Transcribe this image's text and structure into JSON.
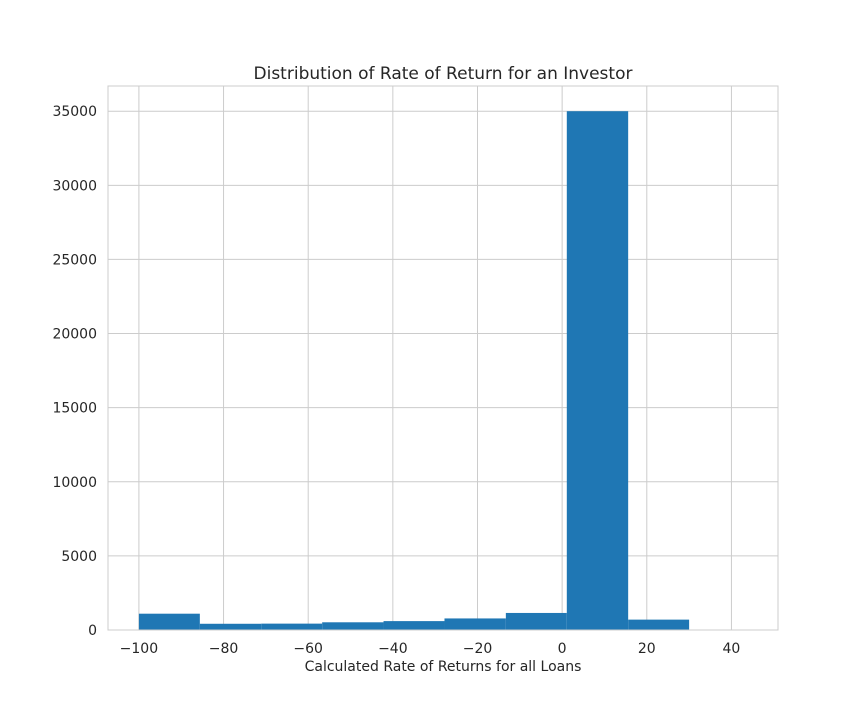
{
  "chart_data": {
    "type": "bar",
    "title": "Distribution of Rate of Return for an Investor",
    "xlabel": "Calculated Rate of Returns for all Loans",
    "ylabel": "",
    "xlim": [
      -107.3,
      51.0
    ],
    "ylim": [
      0,
      36700
    ],
    "xticks": [
      -100,
      -80,
      -60,
      -40,
      -20,
      0,
      20,
      40
    ],
    "xtick_labels": [
      "−100",
      "−80",
      "−60",
      "−40",
      "−20",
      "0",
      "20",
      "40"
    ],
    "yticks": [
      0,
      5000,
      10000,
      15000,
      20000,
      25000,
      30000,
      35000
    ],
    "ytick_labels": [
      "0",
      "5000",
      "10000",
      "15000",
      "20000",
      "25000",
      "30000",
      "35000"
    ],
    "grid": true,
    "bar_color": "#1f77b4",
    "bins": [
      {
        "x0": -100.0,
        "x1": -85.6,
        "value": 1100
      },
      {
        "x0": -85.6,
        "x1": -71.1,
        "value": 420
      },
      {
        "x0": -71.1,
        "x1": -56.7,
        "value": 430
      },
      {
        "x0": -56.7,
        "x1": -42.2,
        "value": 520
      },
      {
        "x0": -42.2,
        "x1": -27.8,
        "value": 600
      },
      {
        "x0": -27.8,
        "x1": -13.3,
        "value": 780
      },
      {
        "x0": -13.3,
        "x1": 1.1,
        "value": 1150
      },
      {
        "x0": 1.1,
        "x1": 15.6,
        "value": 35000
      },
      {
        "x0": 15.6,
        "x1": 30.0,
        "value": 700
      },
      {
        "x0": 30.0,
        "x1": 44.4,
        "value": 10
      }
    ]
  }
}
